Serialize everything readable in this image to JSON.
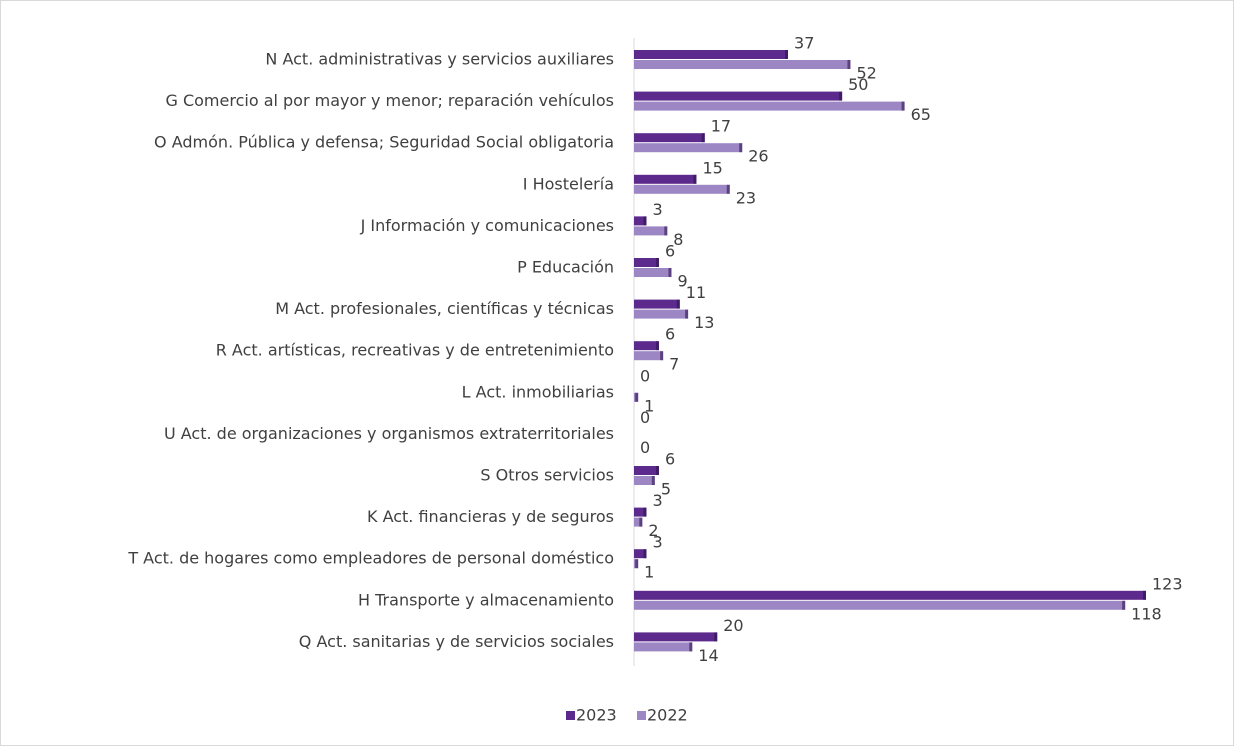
{
  "chart_data": {
    "type": "hbar",
    "categories": [
      "N Act. administrativas y servicios auxiliares",
      "G Comercio al por mayor y menor; reparación vehículos",
      "O Admón. Pública y defensa; Seguridad Social obligatoria",
      "I Hostelería",
      "J Información y comunicaciones",
      "P Educación",
      "M Act. profesionales, científicas y técnicas",
      "R Act. artísticas, recreativas y de entretenimiento",
      "L Act. inmobiliarias",
      "U Act. de organizaciones y organismos extraterritoriales",
      "S Otros servicios",
      "K Act. financieras y de seguros",
      "T Act. de hogares como empleadores de personal doméstico",
      "H Transporte y almacenamiento",
      "Q Act. sanitarias y de servicios sociales"
    ],
    "series": [
      {
        "name": "2023",
        "color": "#5b2a8c",
        "values": [
          37,
          50,
          17,
          15,
          3,
          6,
          11,
          6,
          0,
          0,
          6,
          3,
          3,
          123,
          20
        ]
      },
      {
        "name": "2022",
        "color": "#9d86c4",
        "values": [
          52,
          65,
          26,
          23,
          8,
          9,
          13,
          7,
          1,
          0,
          5,
          2,
          1,
          118,
          14
        ]
      }
    ],
    "legend": "bottom"
  }
}
